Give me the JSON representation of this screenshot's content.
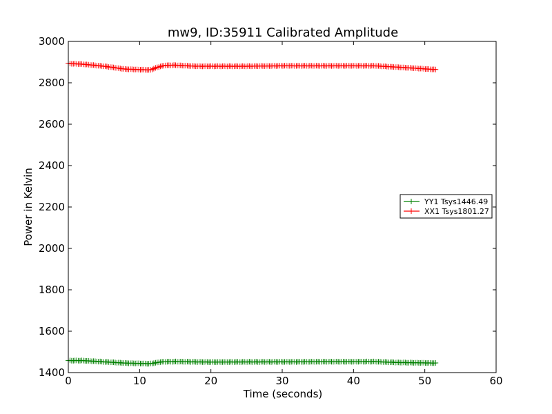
{
  "chart_data": {
    "type": "line",
    "title": "mw9, ID:35911 Calibrated Amplitude",
    "xlabel": "Time (seconds)",
    "ylabel": "Power in Kelvin",
    "xlim": [
      0,
      60
    ],
    "ylim": [
      1400,
      3000
    ],
    "xticks": [
      0,
      10,
      20,
      30,
      40,
      50,
      60
    ],
    "yticks": [
      1400,
      1600,
      1800,
      2000,
      2200,
      2400,
      2600,
      2800,
      3000
    ],
    "grid": false,
    "legend_position": "center-right",
    "series": [
      {
        "name": "YY1 Tsys1446.49",
        "color": "#008000",
        "marker": "+",
        "x_range": [
          0,
          51.5
        ],
        "keypoints": [
          [
            0,
            1458
          ],
          [
            2,
            1458
          ],
          [
            5,
            1452
          ],
          [
            8,
            1446
          ],
          [
            11.5,
            1443
          ],
          [
            13,
            1452
          ],
          [
            15,
            1453
          ],
          [
            20,
            1451
          ],
          [
            30,
            1452
          ],
          [
            43,
            1453
          ],
          [
            46,
            1449
          ],
          [
            51.5,
            1446
          ]
        ]
      },
      {
        "name": "XX1 Tsys1801.27",
        "color": "#ff0000",
        "marker": "+",
        "x_range": [
          0,
          51.5
        ],
        "keypoints": [
          [
            0,
            2893
          ],
          [
            2,
            2890
          ],
          [
            5,
            2880
          ],
          [
            8,
            2866
          ],
          [
            11.5,
            2862
          ],
          [
            12.5,
            2875
          ],
          [
            13.5,
            2884
          ],
          [
            15,
            2885
          ],
          [
            18,
            2880
          ],
          [
            25,
            2880
          ],
          [
            30,
            2882
          ],
          [
            43,
            2882
          ],
          [
            46,
            2876
          ],
          [
            51.5,
            2864
          ]
        ]
      }
    ]
  }
}
